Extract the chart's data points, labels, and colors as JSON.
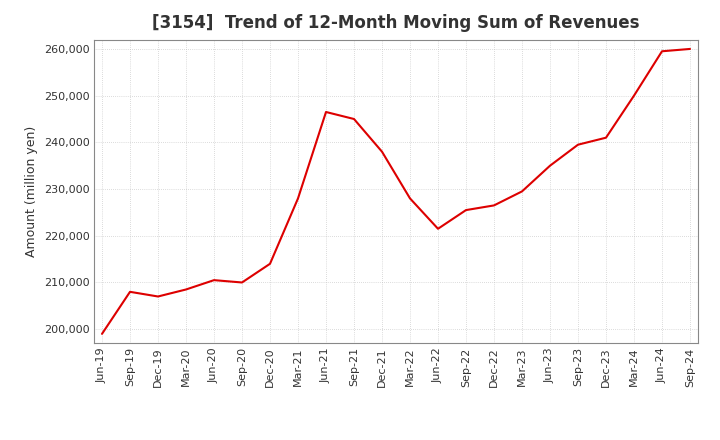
{
  "title": "[3154]  Trend of 12-Month Moving Sum of Revenues",
  "ylabel": "Amount (million yen)",
  "line_color": "#dd0000",
  "background_color": "#ffffff",
  "plot_bg_color": "#ffffff",
  "grid_color": "#bbbbbb",
  "ylim": [
    197000,
    262000
  ],
  "yticks": [
    200000,
    210000,
    220000,
    230000,
    240000,
    250000,
    260000
  ],
  "x_labels": [
    "Jun-19",
    "Sep-19",
    "Dec-19",
    "Mar-20",
    "Jun-20",
    "Sep-20",
    "Dec-20",
    "Mar-21",
    "Jun-21",
    "Sep-21",
    "Dec-21",
    "Mar-22",
    "Jun-22",
    "Sep-22",
    "Dec-22",
    "Mar-23",
    "Jun-23",
    "Sep-23",
    "Dec-23",
    "Mar-24",
    "Jun-24",
    "Sep-24"
  ],
  "values": [
    199000,
    208000,
    207000,
    208500,
    210500,
    210000,
    214000,
    228000,
    246500,
    245000,
    238000,
    228000,
    221500,
    225500,
    226500,
    229500,
    235000,
    239500,
    241000,
    250000,
    259500,
    260000
  ],
  "title_fontsize": 12,
  "title_color": "#333333",
  "tick_fontsize": 8,
  "ylabel_fontsize": 9,
  "line_width": 1.5
}
